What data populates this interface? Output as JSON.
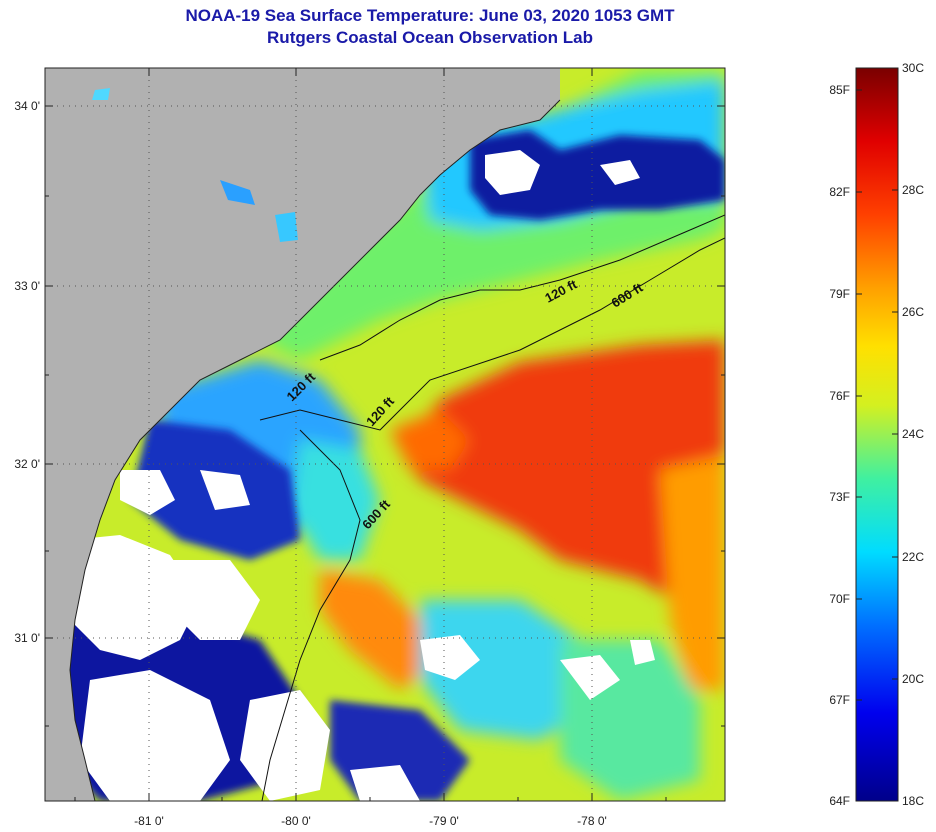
{
  "title": {
    "line1": "NOAA-19 Sea Surface Temperature:  June 03, 2020 1053 GMT",
    "line2": "Rutgers Coastal Ocean Observation Lab"
  },
  "axes": {
    "lat_labels": [
      "34 0'",
      "33 0'",
      "32 0'",
      "31 0'"
    ],
    "lon_labels": [
      "-81 0'",
      "-80 0'",
      "-79 0'",
      "-78 0'"
    ]
  },
  "contours": {
    "c120a": "120 ft",
    "c120b": "120 ft",
    "c600a": "600 ft",
    "c600b": "600 ft",
    "c120c": "120 ft"
  },
  "colorbar": {
    "fahrenheit": [
      "85F",
      "82F",
      "79F",
      "76F",
      "73F",
      "70F",
      "67F",
      "64F"
    ],
    "celsius": [
      "30C",
      "28C",
      "26C",
      "24C",
      "22C",
      "20C",
      "18C"
    ]
  },
  "colors": {
    "land": "#b1b1b1",
    "cloud": "#ffffff",
    "title": "#1a1aa8"
  }
}
